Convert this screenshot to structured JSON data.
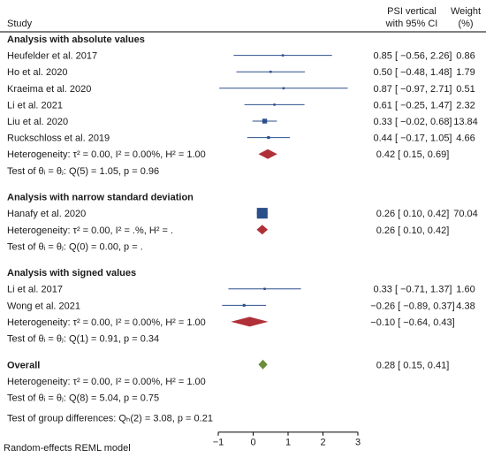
{
  "header": {
    "study_label": "Study",
    "effect_label_line1": "PSI vertical",
    "effect_label_line2": "with 95% CI",
    "weight_label_line1": "Weight",
    "weight_label_line2": "(%)"
  },
  "chart_data": {
    "type": "forest",
    "x_axis": {
      "min": -1,
      "max": 3,
      "ticks": [
        -1,
        0,
        1,
        2,
        3
      ]
    },
    "groups": [
      {
        "title": "Analysis with absolute values",
        "studies": [
          {
            "name": "Heufelder et al. 2017",
            "est": 0.85,
            "lo": -0.56,
            "hi": 2.26,
            "ci_text": "0.85 [ −0.56, 2.26]",
            "weight": 0.86,
            "weight_text": "0.86"
          },
          {
            "name": "Ho et al. 2020",
            "est": 0.5,
            "lo": -0.48,
            "hi": 1.48,
            "ci_text": "0.50 [ −0.48, 1.48]",
            "weight": 1.79,
            "weight_text": "1.79"
          },
          {
            "name": "Kraeima et al. 2020",
            "est": 0.87,
            "lo": -0.97,
            "hi": 2.71,
            "ci_text": "0.87 [ −0.97, 2.71]",
            "weight": 0.51,
            "weight_text": "0.51"
          },
          {
            "name": "Li et al. 2021",
            "est": 0.61,
            "lo": -0.25,
            "hi": 1.47,
            "ci_text": "0.61 [ −0.25, 1.47]",
            "weight": 2.32,
            "weight_text": "2.32"
          },
          {
            "name": "Liu et al. 2020",
            "est": 0.33,
            "lo": -0.02,
            "hi": 0.68,
            "ci_text": "0.33 [ −0.02, 0.68]",
            "weight": 13.84,
            "weight_text": "13.84"
          },
          {
            "name": "Ruckschloss et al. 2019",
            "est": 0.44,
            "lo": -0.17,
            "hi": 1.05,
            "ci_text": "0.44 [ −0.17, 1.05]",
            "weight": 4.66,
            "weight_text": "4.66"
          }
        ],
        "pooled": {
          "est": 0.42,
          "lo": 0.15,
          "hi": 0.69,
          "ci_text": "0.42 [  0.15, 0.69]"
        },
        "heterogeneity": "Heterogeneity: τ² = 0.00, I² = 0.00%, H² = 1.00",
        "test": "Test of θᵢ = θⱼ: Q(5) = 1.05, p = 0.96"
      },
      {
        "title": "Analysis with narrow standard deviation",
        "studies": [
          {
            "name": "Hanafy et al. 2020",
            "est": 0.26,
            "lo": 0.1,
            "hi": 0.42,
            "ci_text": "0.26 [  0.10, 0.42]",
            "weight": 70.04,
            "weight_text": "70.04"
          }
        ],
        "pooled": {
          "est": 0.26,
          "lo": 0.1,
          "hi": 0.42,
          "ci_text": "0.26 [  0.10, 0.42]"
        },
        "heterogeneity": "Heterogeneity: τ² = 0.00, I² = .%, H² = .",
        "test": "Test of θᵢ = θⱼ: Q(0) = 0.00, p = ."
      },
      {
        "title": "Analysis with signed values",
        "studies": [
          {
            "name": "Li et al. 2017",
            "est": 0.33,
            "lo": -0.71,
            "hi": 1.37,
            "ci_text": "0.33 [ −0.71, 1.37]",
            "weight": 1.6,
            "weight_text": "1.60"
          },
          {
            "name": "Wong et al. 2021",
            "est": -0.26,
            "lo": -0.89,
            "hi": 0.37,
            "ci_text": "−0.26 [ −0.89, 0.37]",
            "weight": 4.38,
            "weight_text": "4.38"
          }
        ],
        "pooled": {
          "est": -0.1,
          "lo": -0.64,
          "hi": 0.43,
          "ci_text": "−0.10 [ −0.64, 0.43]"
        },
        "heterogeneity": "Heterogeneity: τ² = 0.00, I² = 0.00%, H² = 1.00",
        "test": "Test of θᵢ = θⱼ: Q(1) = 0.91, p = 0.34"
      }
    ],
    "overall": {
      "title": "Overall",
      "est": 0.28,
      "lo": 0.15,
      "hi": 0.41,
      "ci_text": "0.28 [  0.15, 0.41]",
      "heterogeneity": "Heterogeneity: τ² = 0.00, I² = 0.00%, H² = 1.00",
      "test": "Test of θᵢ = θⱼ: Q(8) = 5.04, p = 0.75",
      "group_test": "Test of group differences: Qₕ(2) = 3.08, p = 0.21"
    },
    "footnote": "Random-effects REML model",
    "colors": {
      "study_marker": "#2b4f8a",
      "ci_line": "#2b4f8a",
      "subgroup_diamond": "#b03038",
      "overall_diamond": "#6b8e3a",
      "header_rule": "#000000"
    }
  }
}
